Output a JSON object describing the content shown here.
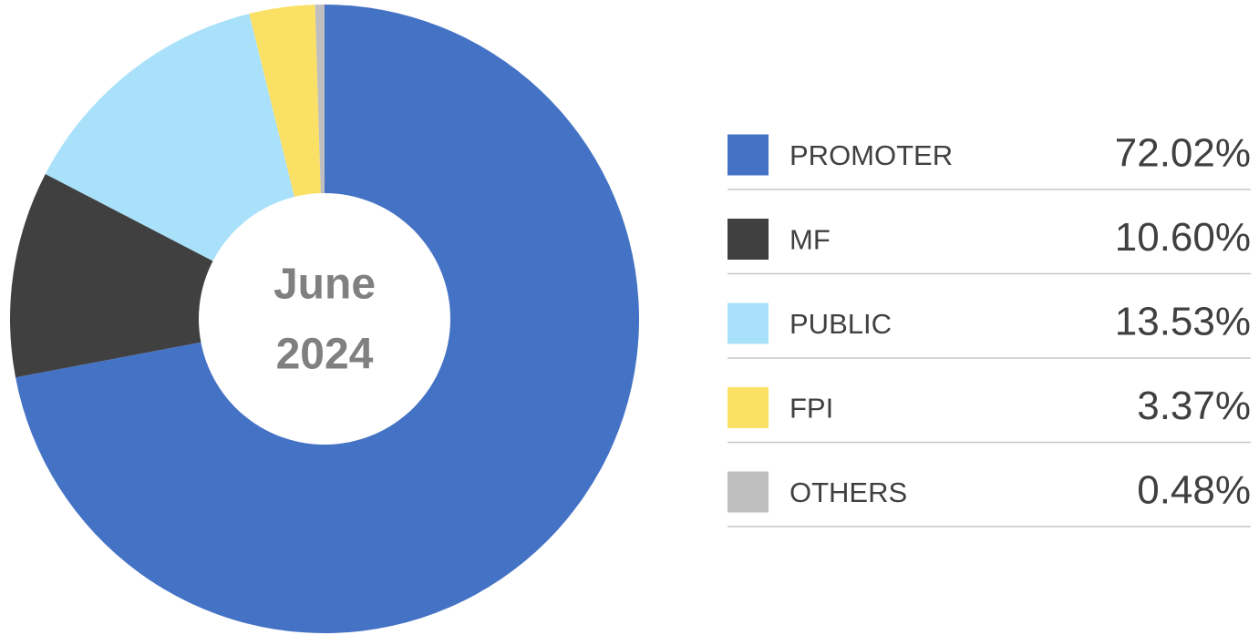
{
  "chart_data": {
    "type": "donut",
    "title": [
      "June",
      "2024"
    ],
    "categories": [
      "PROMOTER",
      "MF",
      "PUBLIC",
      "FPI",
      "OTHERS"
    ],
    "values": [
      72.02,
      10.6,
      13.53,
      3.37,
      0.48
    ],
    "value_labels": [
      "72.02%",
      "10.60%",
      "13.53%",
      "3.37%",
      "0.48%"
    ],
    "colors": [
      "#4472c4",
      "#404040",
      "#a9e1fb",
      "#fbe066",
      "#bfbfbf"
    ],
    "legend": "right"
  }
}
